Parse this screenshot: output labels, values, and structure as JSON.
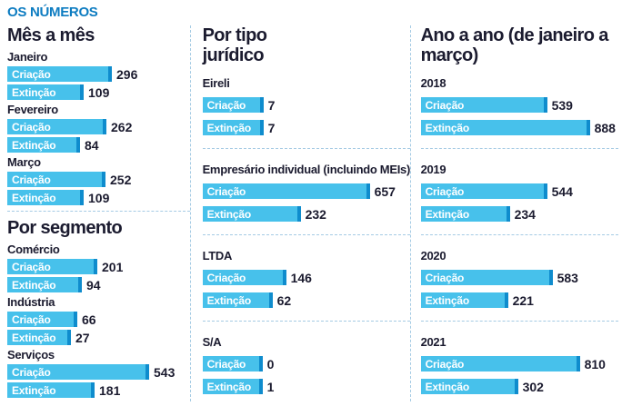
{
  "page": {
    "title": "OS NÚMEROS"
  },
  "labels": {
    "criacao": "Criação",
    "extincao": "Extinção"
  },
  "colors": {
    "title_blue": "#0d7cc1",
    "bar_fill": "#47c1eb",
    "bar_tip": "#0f8ccd",
    "text_dark": "#1b1b2f",
    "dashed_line": "#a5cbe4",
    "bar_label_text": "#ffffff"
  },
  "columns": [
    {
      "name": "mes-e-segmento",
      "sections": [
        {
          "heading": "Mês a mês",
          "groups": [
            {
              "label": "Janeiro",
              "criacao": 296,
              "extincao": 109
            },
            {
              "label": "Fevereiro",
              "criacao": 262,
              "extincao": 84
            },
            {
              "label": "Março",
              "criacao": 252,
              "extincao": 109
            }
          ]
        },
        {
          "heading": "Por segmento",
          "groups": [
            {
              "label": "Comércio",
              "criacao": 201,
              "extincao": 94
            },
            {
              "label": "Indústria",
              "criacao": 66,
              "extincao": 27
            },
            {
              "label": "Serviços",
              "criacao": 543,
              "extincao": 181
            }
          ]
        }
      ]
    },
    {
      "name": "por-tipo-juridico",
      "sections": [
        {
          "heading": "Por tipo jurídico",
          "groups": [
            {
              "label": "Eireli",
              "criacao": 7,
              "extincao": 7
            },
            {
              "label": "Empresário individual (incluindo MEIs)",
              "criacao": 657,
              "extincao": 232
            },
            {
              "label": "LTDA",
              "criacao": 146,
              "extincao": 62
            },
            {
              "label": "S/A",
              "criacao": 0,
              "extincao": 1
            }
          ]
        }
      ]
    },
    {
      "name": "ano-a-ano",
      "sections": [
        {
          "heading": "Ano a ano (de janeiro a março)",
          "groups": [
            {
              "label": "2018",
              "criacao": 539,
              "extincao": 888
            },
            {
              "label": "2019",
              "criacao": 544,
              "extincao": 234
            },
            {
              "label": "2020",
              "criacao": 583,
              "extincao": 221
            },
            {
              "label": "2021",
              "criacao": 810,
              "extincao": 302
            }
          ]
        }
      ]
    }
  ],
  "chart_data": [
    {
      "type": "bar",
      "title": "Mês a mês",
      "categories": [
        "Janeiro",
        "Fevereiro",
        "Março"
      ],
      "series": [
        {
          "name": "Criação",
          "values": [
            296,
            262,
            252
          ]
        },
        {
          "name": "Extinção",
          "values": [
            109,
            84,
            109
          ]
        }
      ],
      "layout": "horizontal bars, value labels at bar end, no axes or grid"
    },
    {
      "type": "bar",
      "title": "Por segmento",
      "categories": [
        "Comércio",
        "Indústria",
        "Serviços"
      ],
      "series": [
        {
          "name": "Criação",
          "values": [
            201,
            66,
            543
          ]
        },
        {
          "name": "Extinção",
          "values": [
            94,
            27,
            181
          ]
        }
      ],
      "layout": "horizontal bars, value labels at bar end, no axes or grid"
    },
    {
      "type": "bar",
      "title": "Por tipo jurídico",
      "categories": [
        "Eireli",
        "Empresário individual (incluindo MEIs)",
        "LTDA",
        "S/A"
      ],
      "series": [
        {
          "name": "Criação",
          "values": [
            7,
            657,
            146,
            0
          ]
        },
        {
          "name": "Extinção",
          "values": [
            7,
            232,
            62,
            1
          ]
        }
      ],
      "layout": "horizontal bars, value labels at bar end, no axes or grid"
    },
    {
      "type": "bar",
      "title": "Ano a ano (de janeiro a março)",
      "categories": [
        "2018",
        "2019",
        "2020",
        "2021"
      ],
      "series": [
        {
          "name": "Criação",
          "values": [
            539,
            544,
            583,
            810
          ]
        },
        {
          "name": "Extinção",
          "values": [
            888,
            234,
            221,
            302
          ]
        }
      ],
      "layout": "horizontal bars, value labels at bar end, no axes or grid"
    }
  ]
}
